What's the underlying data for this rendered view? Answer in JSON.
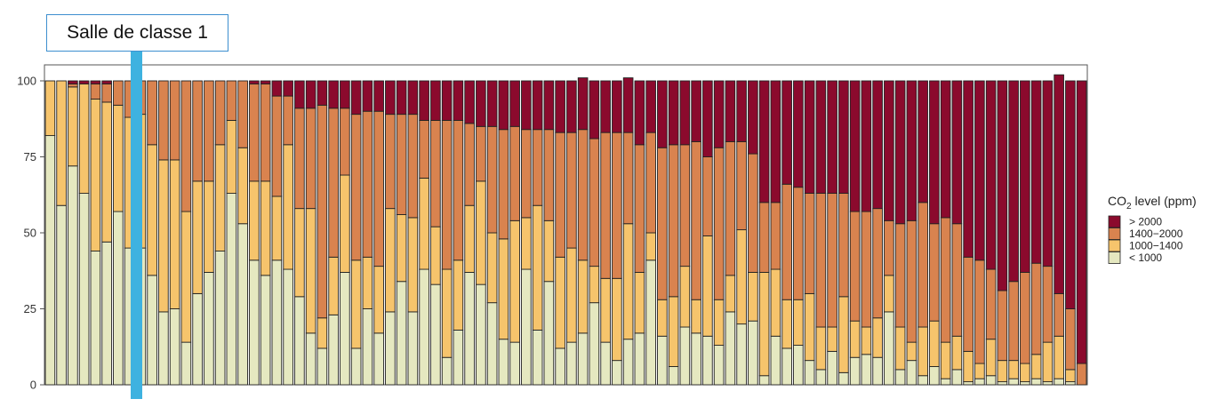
{
  "annotation": {
    "label": "Salle de classe 1",
    "target_index": 8,
    "color": "#3eb2e0"
  },
  "chart_data": {
    "type": "bar",
    "stacked": true,
    "ylim": [
      0,
      100
    ],
    "y_ticks": [
      "0",
      "25",
      "50",
      "75",
      "100"
    ],
    "n_bars": 92,
    "legend_title": {
      "main": "CO",
      "sub": "2",
      "rest": " level (ppm)"
    },
    "legend_position": "right",
    "grid": false,
    "series": [
      {
        "name": "< 1000",
        "color": "#e5e8c0",
        "values": [
          82,
          59,
          72,
          63,
          44,
          47,
          57,
          45,
          45,
          36,
          24,
          25,
          14,
          30,
          37,
          44,
          63,
          53,
          41,
          36,
          41,
          38,
          29,
          17,
          12,
          23,
          37,
          12,
          25,
          17,
          24,
          34,
          24,
          38,
          33,
          9,
          18,
          37,
          33,
          27,
          15,
          14,
          38,
          18,
          34,
          12,
          14,
          17,
          27,
          14,
          8,
          15,
          17,
          41,
          16,
          6,
          19,
          17,
          16,
          13,
          24,
          20,
          21,
          3,
          16,
          12,
          13,
          8,
          5,
          11,
          4,
          9,
          10,
          9,
          24,
          5,
          8,
          3,
          6,
          2,
          5,
          1,
          2,
          3,
          1,
          2,
          1,
          2,
          1,
          2,
          1,
          0
        ]
      },
      {
        "name": "1000−1400",
        "color": "#f6c46c",
        "values": [
          18,
          41,
          26,
          36,
          50,
          46,
          35,
          43,
          44,
          43,
          50,
          49,
          43,
          37,
          30,
          35,
          24,
          25,
          26,
          31,
          21,
          41,
          29,
          41,
          10,
          19,
          32,
          29,
          17,
          22,
          34,
          22,
          31,
          30,
          19,
          29,
          23,
          22,
          34,
          23,
          33,
          40,
          17,
          41,
          20,
          30,
          31,
          24,
          12,
          21,
          27,
          38,
          20,
          9,
          12,
          23,
          20,
          11,
          33,
          15,
          12,
          31,
          16,
          34,
          22,
          16,
          15,
          22,
          14,
          8,
          25,
          12,
          9,
          13,
          12,
          14,
          6,
          16,
          15,
          12,
          11,
          10,
          5,
          12,
          7,
          6,
          6,
          8,
          13,
          14,
          4,
          0
        ]
      },
      {
        "name": "1400−2000",
        "color": "#d9834f",
        "values": [
          0,
          0,
          1,
          0,
          5,
          6,
          8,
          12,
          11,
          21,
          26,
          26,
          43,
          33,
          33,
          21,
          13,
          22,
          32,
          32,
          33,
          16,
          33,
          33,
          70,
          49,
          22,
          48,
          48,
          51,
          31,
          33,
          34,
          19,
          35,
          49,
          46,
          27,
          18,
          35,
          36,
          31,
          29,
          25,
          30,
          41,
          38,
          43,
          42,
          48,
          48,
          30,
          42,
          33,
          50,
          50,
          40,
          52,
          26,
          50,
          44,
          29,
          39,
          23,
          22,
          38,
          37,
          33,
          44,
          44,
          34,
          36,
          38,
          36,
          18,
          34,
          40,
          41,
          32,
          41,
          37,
          31,
          34,
          23,
          23,
          26,
          30,
          30,
          25,
          14,
          20,
          7
        ]
      },
      {
        "name": "> 2000",
        "color": "#8b0a2d",
        "values": [
          0,
          0,
          1,
          1,
          1,
          1,
          0,
          0,
          0,
          0,
          0,
          0,
          0,
          0,
          0,
          0,
          0,
          0,
          1,
          1,
          5,
          5,
          9,
          9,
          8,
          9,
          9,
          11,
          10,
          10,
          11,
          11,
          11,
          13,
          13,
          13,
          13,
          14,
          15,
          15,
          16,
          15,
          16,
          16,
          16,
          17,
          17,
          17,
          19,
          17,
          17,
          18,
          21,
          17,
          22,
          21,
          21,
          20,
          25,
          22,
          20,
          20,
          24,
          40,
          40,
          34,
          35,
          37,
          37,
          37,
          37,
          43,
          43,
          42,
          46,
          47,
          46,
          40,
          47,
          45,
          47,
          58,
          59,
          62,
          69,
          66,
          63,
          60,
          61,
          72,
          75,
          93
        ]
      }
    ]
  }
}
